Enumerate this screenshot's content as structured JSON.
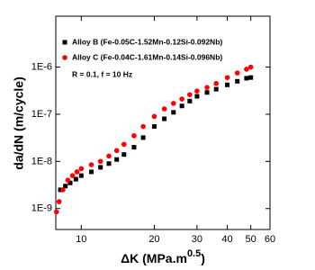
{
  "chart_data": {
    "type": "scatter",
    "x_label": [
      "ΔK (MPa.m",
      "0.5",
      ")"
    ],
    "y_label": "da/dN (m/cycle)",
    "annotation": "R = 0.1, f = 10 Hz",
    "x_log": true,
    "y_log": true,
    "xlim": [
      7.85,
      60
    ],
    "xticks": [
      10,
      20,
      30,
      40,
      50,
      60
    ],
    "ylim": [
      3.6e-10,
      1.2e-05
    ],
    "yticks": [
      {
        "value": 1e-09,
        "label": "1E-9"
      },
      {
        "value": 1e-08,
        "label": "1E-8"
      },
      {
        "value": 1e-07,
        "label": "1E-7"
      },
      {
        "value": 1e-06,
        "label": "1E-6"
      }
    ],
    "series": [
      {
        "name": "Alloy B (Fe-0.05C-1.52Mn-0.12Si-0.092Nb)",
        "color": "#000000",
        "marker": "square",
        "x": [
          8.2,
          8.6,
          9,
          9.5,
          10,
          11,
          12,
          13,
          14,
          15,
          16.5,
          18,
          20,
          22,
          24,
          26,
          28,
          30,
          33,
          36,
          40,
          44,
          48,
          50
        ],
        "values": [
          2.5e-09,
          3e-09,
          3.5e-09,
          4.2e-09,
          5e-09,
          6e-09,
          7.5e-09,
          9e-09,
          1.1e-08,
          1.4e-08,
          2e-08,
          3.2e-08,
          5.5e-08,
          8e-08,
          1.1e-07,
          1.5e-07,
          1.9e-07,
          2.4e-07,
          2.9e-07,
          3.4e-07,
          4.2e-07,
          5e-07,
          5.8e-07,
          6e-07
        ]
      },
      {
        "name": "Alloy C (Fe-0.04C-1.61Mn-0.14Si-0.096Nb)",
        "color": "#ff0000",
        "marker": "circle",
        "x": [
          7.9,
          8.1,
          8.4,
          8.8,
          9.2,
          9.6,
          10,
          11,
          12,
          13,
          14,
          15,
          16.5,
          18,
          20,
          22,
          24,
          26,
          28,
          30,
          33,
          36,
          40,
          44,
          48,
          50
        ],
        "values": [
          8.5e-10,
          1.4e-09,
          2.5e-09,
          4e-09,
          5e-09,
          6e-09,
          7e-09,
          8.5e-09,
          1e-08,
          1.3e-08,
          1.7e-08,
          2.3e-08,
          3.5e-08,
          5.5e-08,
          9e-08,
          1.3e-07,
          1.7e-07,
          2.1e-07,
          2.6e-07,
          3.1e-07,
          3.7e-07,
          4.5e-07,
          6e-07,
          7.5e-07,
          9e-07,
          1e-06
        ]
      }
    ]
  }
}
